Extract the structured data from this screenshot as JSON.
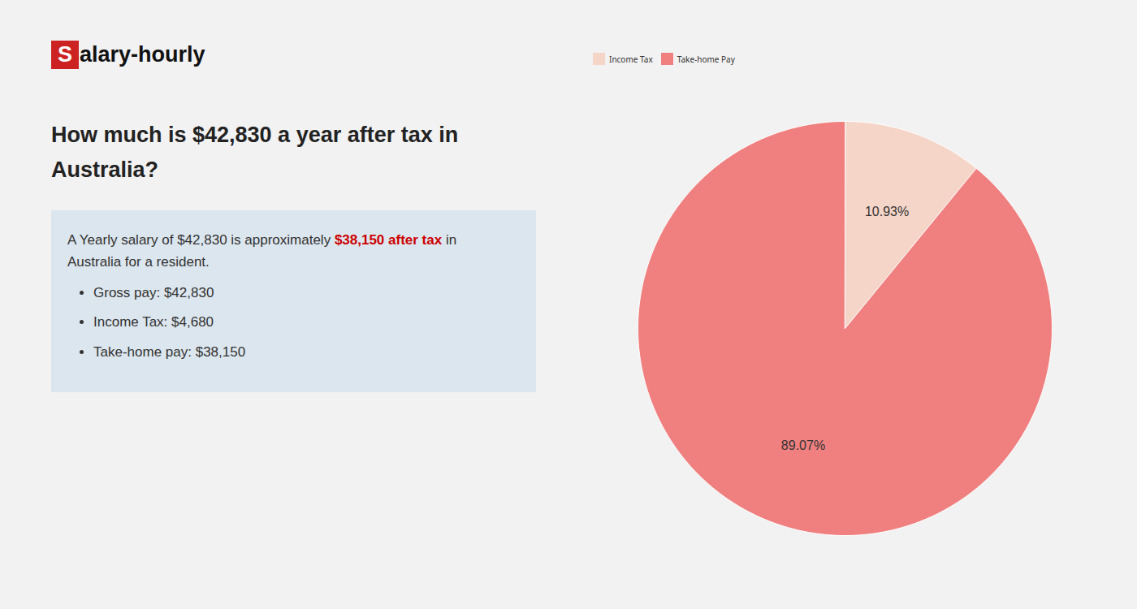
{
  "chart_data": {
    "type": "pie",
    "title": "How much is $42,830 a year after tax in Australia?",
    "categories": [
      "Income Tax",
      "Take-home Pay"
    ],
    "values": [
      10.93,
      89.07
    ],
    "value_labels": [
      "10.93%",
      "89.07%"
    ],
    "data_labels": true,
    "colors": [
      "#f5d5c8",
      "#f08080"
    ],
    "legend": "top",
    "annotations": [
      "S",
      "alary-hourly",
      "A Yearly salary of $42,830 is approximately",
      "$38,150 after tax",
      "in",
      "Australia for a resident.",
      "Gross pay: $42,830",
      "Income Tax: $4,680",
      "Take-home pay: $38,150"
    ]
  }
}
